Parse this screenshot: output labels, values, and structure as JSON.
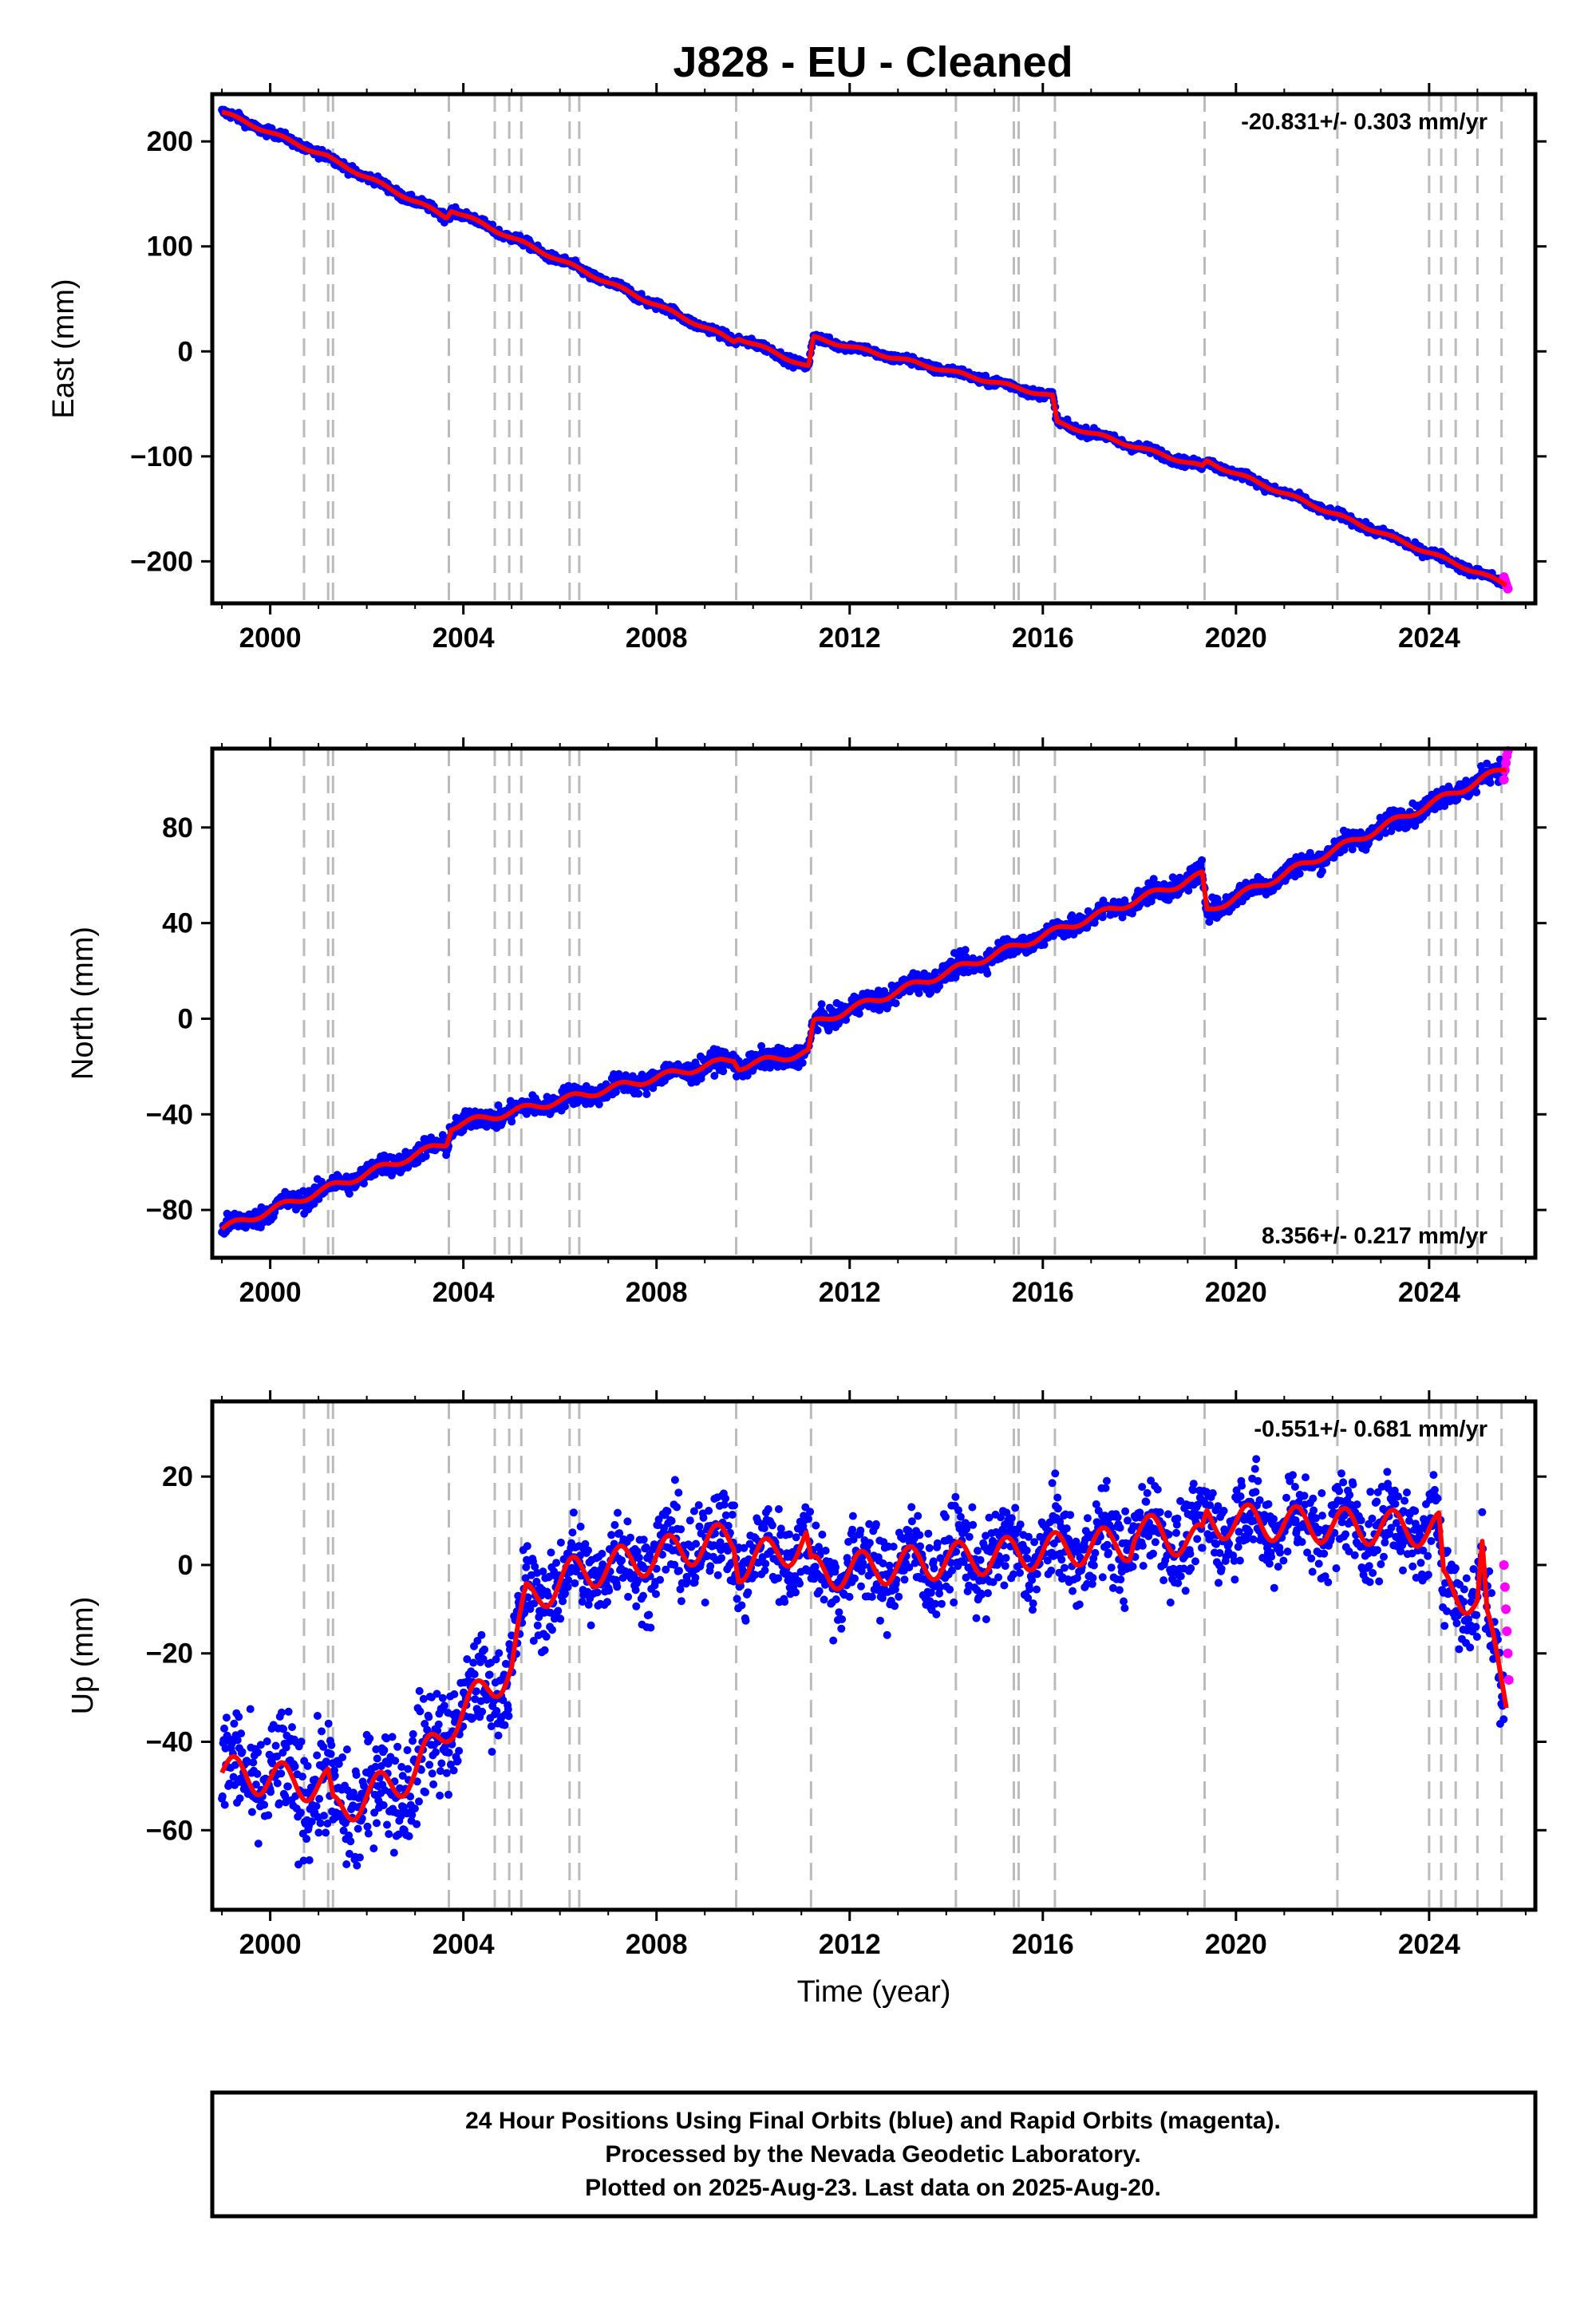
{
  "title": "J828  - EU - Cleaned",
  "footer": {
    "lines": [
      "24 Hour Positions Using Final Orbits (blue) and Rapid Orbits (magenta).",
      "Processed by the Nevada Geodetic Laboratory.",
      "Plotted on 2025-Aug-23. Last data on 2025-Aug-20."
    ]
  },
  "colors": {
    "final_orbits": "#0000ff",
    "rapid_orbits": "#ff00ff",
    "model": "#ff0000",
    "steps": "#bbbbbb",
    "frame": "#000000"
  },
  "chart_data": [
    {
      "type": "scatter",
      "component": "East",
      "ylabel": "East (mm)",
      "xlabel": "",
      "rate_text": "-20.831+/- 0.303 mm/yr",
      "xlim": [
        1998.8,
        2026.2
      ],
      "ylim": [
        -240,
        245
      ],
      "xticks": [
        2000,
        2004,
        2008,
        2012,
        2016,
        2020,
        2024
      ],
      "yticks": [
        -200,
        -100,
        0,
        100,
        200
      ],
      "ytick_labels": [
        "−200",
        "−100",
        "0",
        "100",
        "200"
      ],
      "step_epochs": [
        2000.7,
        2001.2,
        2001.3,
        2003.7,
        2004.65,
        2004.95,
        2005.2,
        2006.2,
        2006.4,
        2009.65,
        2011.2,
        2014.2,
        2015.4,
        2015.5,
        2016.25,
        2019.35,
        2022.1,
        2024.0,
        2024.25,
        2024.55,
        2025.0,
        2025.5
      ],
      "model_series": {
        "name": "",
        "x": [
          1999.0,
          2001.2,
          2001.3,
          2003.65,
          2003.75,
          2009.6,
          2009.7,
          2011.15,
          2011.25,
          2016.2,
          2016.3,
          2019.3,
          2019.4,
          2025.6
        ],
        "y": [
          228,
          185,
          182,
          128,
          135,
          10,
          13,
          -15,
          13,
          -43,
          -68,
          -110,
          -105,
          -222
        ]
      },
      "final_series": {
        "name": "Final Orbits",
        "x_range": [
          1999.0,
          2025.55
        ],
        "noise_mm": 3
      },
      "rapid_series": {
        "name": "Rapid Orbits",
        "x": [
          2025.55,
          2025.57,
          2025.59,
          2025.61,
          2025.63
        ],
        "y": [
          -215,
          -218,
          -221,
          -224,
          -226
        ]
      }
    },
    {
      "type": "scatter",
      "component": "North",
      "ylabel": "North (mm)",
      "xlabel": "",
      "rate_text": "8.356+/- 0.217 mm/yr",
      "xlim": [
        1998.8,
        2026.2
      ],
      "ylim": [
        -100,
        113
      ],
      "xticks": [
        2000,
        2004,
        2008,
        2012,
        2016,
        2020,
        2024
      ],
      "yticks": [
        -80,
        -40,
        0,
        40,
        80
      ],
      "ytick_labels": [
        "−80",
        "−40",
        "0",
        "40",
        "80"
      ],
      "step_epochs": [
        2000.7,
        2001.2,
        2001.3,
        2003.7,
        2004.65,
        2004.95,
        2005.2,
        2006.2,
        2006.4,
        2009.65,
        2011.2,
        2014.2,
        2015.4,
        2015.5,
        2016.25,
        2019.35,
        2022.1,
        2024.0,
        2024.25,
        2024.55,
        2025.0,
        2025.5
      ],
      "model_series": {
        "name": "",
        "x": [
          1999.0,
          2003.65,
          2003.75,
          2009.6,
          2009.7,
          2011.15,
          2011.25,
          2019.3,
          2019.4,
          2025.6
        ],
        "y": [
          -88,
          -52,
          -45,
          -17,
          -20,
          -14,
          -2,
          60,
          45,
          105
        ]
      },
      "final_series": {
        "name": "Final Orbits",
        "x_range": [
          1999.0,
          2025.55
        ],
        "noise_mm": 3
      },
      "rapid_series": {
        "name": "Rapid Orbits",
        "x": [
          2025.55,
          2025.57,
          2025.59,
          2025.61,
          2025.63
        ],
        "y": [
          100,
          104,
          107,
          110,
          112
        ]
      }
    },
    {
      "type": "scatter",
      "component": "Up",
      "ylabel": "Up (mm)",
      "xlabel": "Time (year)",
      "rate_text": "-0.551+/- 0.681 mm/yr",
      "xlim": [
        1998.8,
        2026.2
      ],
      "ylim": [
        -78,
        37
      ],
      "xticks": [
        2000,
        2004,
        2008,
        2012,
        2016,
        2020,
        2024
      ],
      "yticks": [
        -60,
        -40,
        -20,
        0,
        20
      ],
      "ytick_labels": [
        "−60",
        "−40",
        "−20",
        "0",
        "20"
      ],
      "step_epochs": [
        2000.7,
        2001.2,
        2001.3,
        2003.7,
        2004.65,
        2004.95,
        2005.2,
        2006.2,
        2006.4,
        2009.65,
        2011.2,
        2014.2,
        2015.4,
        2015.5,
        2016.25,
        2019.35,
        2022.1,
        2024.0,
        2024.25,
        2024.55,
        2025.0,
        2025.5
      ],
      "model_series": {
        "name": "",
        "x": [
          1999.0,
          2001.2,
          2001.3,
          2003.0,
          2003.7,
          2004.0,
          2005.0,
          2005.3,
          2006.3,
          2009.6,
          2009.7,
          2011.1,
          2011.2,
          2017.8,
          2017.9,
          2019.3,
          2019.4,
          2024.2,
          2024.3,
          2025.0,
          2025.1,
          2025.2,
          2025.6
        ],
        "y": [
          -47,
          -50,
          -56,
          -47,
          -36,
          -33,
          -23,
          -8,
          -2,
          6,
          0,
          5,
          -2,
          5,
          8,
          5,
          10,
          8,
          -5,
          -8,
          3,
          -14,
          -30
        ]
      },
      "final_series": {
        "name": "Final Orbits",
        "x_range": [
          1999.0,
          2025.55
        ],
        "noise_mm": 7
      },
      "rapid_series": {
        "name": "Rapid Orbits",
        "x": [
          2025.55,
          2025.57,
          2025.59,
          2025.61,
          2025.63,
          2025.65
        ],
        "y": [
          0,
          -5,
          -10,
          -15,
          -20,
          -26
        ]
      }
    }
  ]
}
